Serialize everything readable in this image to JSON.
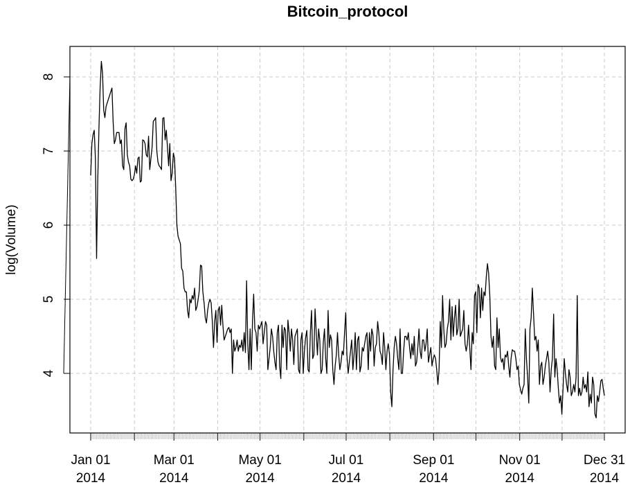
{
  "chart_data": {
    "type": "line",
    "title": "Bitcoin_protocol",
    "xlabel": "",
    "ylabel": "log(Volume)",
    "x_start": "2014-01-01",
    "x_end": "2014-12-31",
    "ylim": [
      3.3,
      8.5
    ],
    "y_ticks": [
      4,
      5,
      6,
      7,
      8
    ],
    "x_ticks": [
      {
        "date": "2014-01-01",
        "line1": "Jan 01",
        "line2": "2014"
      },
      {
        "date": "2014-03-01",
        "line1": "Mar 01",
        "line2": "2014"
      },
      {
        "date": "2014-05-01",
        "line1": "May 01",
        "line2": "2014"
      },
      {
        "date": "2014-07-01",
        "line1": "Jul 01",
        "line2": "2014"
      },
      {
        "date": "2014-09-01",
        "line1": "Sep 01",
        "line2": "2014"
      },
      {
        "date": "2014-11-01",
        "line1": "Nov 01",
        "line2": "2014"
      },
      {
        "date": "2014-12-31",
        "line1": "Dec 31",
        "line2": "2014"
      }
    ],
    "minor_grid_dates": [
      "2014-02-01",
      "2014-04-01",
      "2014-06-01",
      "2014-08-01",
      "2014-10-01",
      "2014-12-01"
    ],
    "grid": true,
    "series": [
      {
        "values": [
          6.67,
          7.1,
          7.22,
          7.28,
          6.9,
          5.55,
          6.6,
          7.3,
          7.85,
          8.21,
          8.05,
          7.55,
          7.45,
          7.6,
          7.65,
          7.7,
          7.75,
          7.8,
          7.85,
          7.4,
          7.1,
          7.15,
          7.25,
          7.25,
          7.25,
          7.1,
          7.15,
          6.8,
          6.75,
          7.3,
          7.38,
          6.95,
          6.85,
          6.8,
          6.62,
          6.6,
          6.62,
          6.68,
          6.8,
          6.7,
          6.9,
          6.92,
          6.58,
          6.6,
          7.15,
          7.14,
          7.1,
          6.95,
          6.92,
          7.2,
          6.75,
          6.9,
          7.05,
          7.4,
          7.42,
          7.45,
          7.0,
          6.85,
          6.8,
          6.78,
          6.75,
          7.44,
          7.45,
          7.15,
          7.28,
          7.05,
          6.8,
          7.1,
          6.6,
          6.7,
          6.97,
          6.9,
          6.5,
          6.0,
          5.85,
          5.8,
          5.75,
          5.42,
          5.38,
          5.15,
          5.1,
          5.1,
          4.85,
          4.75,
          5.0,
          4.95,
          5.05,
          5.0,
          5.15,
          4.85,
          4.9,
          5.0,
          5.12,
          5.46,
          5.45,
          5.1,
          4.95,
          4.75,
          4.68,
          4.85,
          4.95,
          5.0,
          4.95,
          4.7,
          4.35,
          4.7,
          4.85,
          4.42,
          4.85,
          4.9,
          4.65,
          4.92,
          4.65,
          4.45,
          4.5,
          4.55,
          4.6,
          4.62,
          4.55,
          4.6,
          4.0,
          4.45,
          4.3,
          4.35,
          4.45,
          4.3,
          4.38,
          4.35,
          4.45,
          4.3,
          4.55,
          4.28,
          5.25,
          4.4,
          4.05,
          4.6,
          4.05,
          4.7,
          5.07,
          4.6,
          4.55,
          4.3,
          4.65,
          4.6,
          4.65,
          4.7,
          4.4,
          4.55,
          4.7,
          4.65,
          4.05,
          4.2,
          4.35,
          4.6,
          4.5,
          4.3,
          4.15,
          4.05,
          4.55,
          4.65,
          4.1,
          3.93,
          4.65,
          4.35,
          4.62,
          4.58,
          4.05,
          4.72,
          4.55,
          4.3,
          4.6,
          4.45,
          4.12,
          4.5,
          4.55,
          4.6,
          4.05,
          4.0,
          4.45,
          4.55,
          4.0,
          4.3,
          4.48,
          4.58,
          4.05,
          4.02,
          4.55,
          4.85,
          4.2,
          4.25,
          4.87,
          4.55,
          4.25,
          4.6,
          4.45,
          4.0,
          4.05,
          4.42,
          4.6,
          4.2,
          4.0,
          4.85,
          4.35,
          4.52,
          4.45,
          4.05,
          3.85,
          4.1,
          4.25,
          4.55,
          4.25,
          4.05,
          4.15,
          4.3,
          4.25,
          4.55,
          4.82,
          4.25,
          4.0,
          4.15,
          4.3,
          4.45,
          4.05,
          4.25,
          4.55,
          4.05,
          4.45,
          4.5,
          4.02,
          4.1,
          4.35,
          4.3,
          4.4,
          4.5,
          4.55,
          4.05,
          4.55,
          4.3,
          4.6,
          4.52,
          4.1,
          4.35,
          4.4,
          4.7,
          4.55,
          4.3,
          4.25,
          4.12,
          4.55,
          4.35,
          4.05,
          4.3,
          4.4,
          4.25,
          3.75,
          3.55,
          4.05,
          4.35,
          4.5,
          4.4,
          4.2,
          4.05,
          4.6,
          4.0,
          4.0,
          4.3,
          4.5,
          4.5,
          4.45,
          4.55,
          4.35,
          4.2,
          4.4,
          4.25,
          4.5,
          4.1,
          4.15,
          4.35,
          4.6,
          4.3,
          4.2,
          4.45,
          4.45,
          4.3,
          4.4,
          4.6,
          4.15,
          4.25,
          4.35,
          4.1,
          4.2,
          4.25,
          4.2,
          4.05,
          3.85,
          4.05,
          4.7,
          4.35,
          5.05,
          4.6,
          4.35,
          4.4,
          4.6,
          4.7,
          5.0,
          4.45,
          4.9,
          4.5,
          4.75,
          4.92,
          4.52,
          4.6,
          5.0,
          4.5,
          4.55,
          4.6,
          4.85,
          4.4,
          4.3,
          4.4,
          4.65,
          4.35,
          4.05,
          4.55,
          4.4,
          5.05,
          5.1,
          4.55,
          5.2,
          5.15,
          4.75,
          5.15,
          4.85,
          5.1,
          5.05,
          5.3,
          5.48,
          5.35,
          5.05,
          4.5,
          4.35,
          4.5,
          4.1,
          4.05,
          4.75,
          4.35,
          4.6,
          4.22,
          4.15,
          4.2,
          4.05,
          4.25,
          4.22,
          4.3,
          4.1,
          3.95,
          4.2,
          4.32,
          4.3,
          4.3,
          4.2,
          4.05,
          4.1,
          3.85,
          3.78,
          3.72,
          3.8,
          3.85,
          4.6,
          4.2,
          3.95,
          3.6,
          4.6,
          4.75,
          5.15,
          4.8,
          4.45,
          4.5,
          4.3,
          4.45,
          3.85,
          4.1,
          4.15,
          3.85,
          3.95,
          4.1,
          4.2,
          4.3,
          4.15,
          3.75,
          4.05,
          4.2,
          4.8,
          3.95,
          4.2,
          4.05,
          3.8,
          3.6,
          3.7,
          3.45,
          3.8,
          4.2,
          4.0,
          3.85,
          3.75,
          4.05,
          3.95,
          3.7,
          3.75,
          3.85,
          3.75,
          3.95,
          5.05,
          3.7,
          3.8,
          3.7,
          3.75,
          3.95,
          3.8,
          3.85,
          3.75,
          4.02,
          3.55,
          3.72,
          3.6,
          3.95,
          3.85,
          3.45,
          3.4,
          3.7,
          3.62,
          3.75,
          3.9,
          3.92,
          3.8,
          3.7
        ]
      }
    ]
  }
}
